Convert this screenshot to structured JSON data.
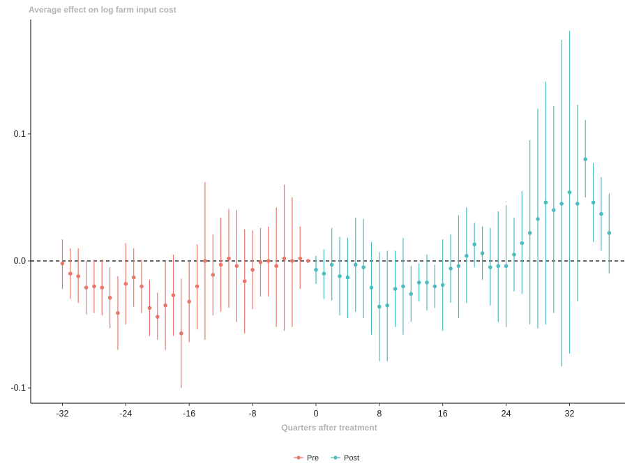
{
  "chart_data": {
    "type": "scatter",
    "title": "",
    "ylabel": "Average effect on log farm input cost",
    "xlabel": "Quarters after treatment",
    "xlim": [
      -36,
      39
    ],
    "ylim": [
      -0.112,
      0.19
    ],
    "x_ticks": [
      -32,
      -24,
      -16,
      -8,
      0,
      8,
      16,
      24,
      32
    ],
    "x_tick_labels": [
      "-32",
      "-24",
      "-16",
      "-8",
      "0",
      "8",
      "16",
      "24",
      "32"
    ],
    "y_ticks": [
      -0.1,
      0.0,
      0.1
    ],
    "y_tick_labels": [
      "-0.1",
      "0.0",
      "0.1"
    ],
    "reference_line": {
      "y": 0,
      "style": "dashed"
    },
    "legend_position": "bottom",
    "series": [
      {
        "name": "Pre",
        "color": "#e8776a",
        "points": [
          {
            "x": -32,
            "y": -0.002,
            "lo": -0.022,
            "hi": 0.017
          },
          {
            "x": -31,
            "y": -0.01,
            "lo": -0.03,
            "hi": 0.01
          },
          {
            "x": -30,
            "y": -0.012,
            "lo": -0.033,
            "hi": 0.01
          },
          {
            "x": -29,
            "y": -0.021,
            "lo": -0.042,
            "hi": 0.0
          },
          {
            "x": -28,
            "y": -0.02,
            "lo": -0.041,
            "hi": 0.001
          },
          {
            "x": -27,
            "y": -0.021,
            "lo": -0.043,
            "hi": 0.001
          },
          {
            "x": -26,
            "y": -0.029,
            "lo": -0.053,
            "hi": -0.005
          },
          {
            "x": -25,
            "y": -0.041,
            "lo": -0.07,
            "hi": -0.012
          },
          {
            "x": -24,
            "y": -0.018,
            "lo": -0.05,
            "hi": 0.014
          },
          {
            "x": -23,
            "y": -0.013,
            "lo": -0.036,
            "hi": 0.01
          },
          {
            "x": -22,
            "y": -0.02,
            "lo": -0.041,
            "hi": 0.001
          },
          {
            "x": -21,
            "y": -0.037,
            "lo": -0.059,
            "hi": -0.015
          },
          {
            "x": -20,
            "y": -0.044,
            "lo": -0.062,
            "hi": -0.025
          },
          {
            "x": -19,
            "y": -0.035,
            "lo": -0.07,
            "hi": 0.0
          },
          {
            "x": -18,
            "y": -0.027,
            "lo": -0.059,
            "hi": 0.005
          },
          {
            "x": -17,
            "y": -0.057,
            "lo": -0.1,
            "hi": -0.014
          },
          {
            "x": -16,
            "y": -0.032,
            "lo": -0.064,
            "hi": 0.0
          },
          {
            "x": -15,
            "y": -0.02,
            "lo": -0.054,
            "hi": 0.013
          },
          {
            "x": -14,
            "y": 0.0,
            "lo": -0.062,
            "hi": 0.062
          },
          {
            "x": -13,
            "y": -0.011,
            "lo": -0.043,
            "hi": 0.021
          },
          {
            "x": -12,
            "y": -0.003,
            "lo": -0.04,
            "hi": 0.034
          },
          {
            "x": -11,
            "y": 0.002,
            "lo": -0.037,
            "hi": 0.041
          },
          {
            "x": -10,
            "y": -0.004,
            "lo": -0.048,
            "hi": 0.04
          },
          {
            "x": -9,
            "y": -0.016,
            "lo": -0.057,
            "hi": 0.025
          },
          {
            "x": -8,
            "y": -0.007,
            "lo": -0.038,
            "hi": 0.024
          },
          {
            "x": -7,
            "y": -0.001,
            "lo": -0.028,
            "hi": 0.026
          },
          {
            "x": -6,
            "y": 0.0,
            "lo": -0.028,
            "hi": 0.027
          },
          {
            "x": -5,
            "y": -0.004,
            "lo": -0.052,
            "hi": 0.042
          },
          {
            "x": -4,
            "y": 0.002,
            "lo": -0.055,
            "hi": 0.06
          },
          {
            "x": -3,
            "y": 0.0,
            "lo": -0.052,
            "hi": 0.05
          },
          {
            "x": -2,
            "y": 0.002,
            "lo": -0.022,
            "hi": 0.027
          },
          {
            "x": -1,
            "y": 0.0,
            "lo": 0.0,
            "hi": 0.0
          }
        ]
      },
      {
        "name": "Post",
        "color": "#4bbcbf",
        "points": [
          {
            "x": 0,
            "y": -0.007,
            "lo": -0.018,
            "hi": 0.004
          },
          {
            "x": 1,
            "y": -0.01,
            "lo": -0.03,
            "hi": 0.009
          },
          {
            "x": 2,
            "y": -0.003,
            "lo": -0.031,
            "hi": 0.026
          },
          {
            "x": 3,
            "y": -0.012,
            "lo": -0.043,
            "hi": 0.019
          },
          {
            "x": 4,
            "y": -0.013,
            "lo": -0.045,
            "hi": 0.018
          },
          {
            "x": 5,
            "y": -0.003,
            "lo": -0.04,
            "hi": 0.034
          },
          {
            "x": 6,
            "y": -0.005,
            "lo": -0.045,
            "hi": 0.033
          },
          {
            "x": 7,
            "y": -0.021,
            "lo": -0.058,
            "hi": 0.015
          },
          {
            "x": 8,
            "y": -0.036,
            "lo": -0.079,
            "hi": 0.007
          },
          {
            "x": 9,
            "y": -0.035,
            "lo": -0.079,
            "hi": 0.008
          },
          {
            "x": 10,
            "y": -0.022,
            "lo": -0.052,
            "hi": 0.008
          },
          {
            "x": 11,
            "y": -0.02,
            "lo": -0.058,
            "hi": 0.018
          },
          {
            "x": 12,
            "y": -0.026,
            "lo": -0.048,
            "hi": -0.004
          },
          {
            "x": 13,
            "y": -0.017,
            "lo": -0.032,
            "hi": -0.002
          },
          {
            "x": 14,
            "y": -0.017,
            "lo": -0.039,
            "hi": 0.005
          },
          {
            "x": 15,
            "y": -0.02,
            "lo": -0.037,
            "hi": -0.003
          },
          {
            "x": 16,
            "y": -0.019,
            "lo": -0.055,
            "hi": 0.017
          },
          {
            "x": 17,
            "y": -0.006,
            "lo": -0.033,
            "hi": 0.021
          },
          {
            "x": 18,
            "y": -0.004,
            "lo": -0.045,
            "hi": 0.036
          },
          {
            "x": 19,
            "y": 0.004,
            "lo": -0.033,
            "hi": 0.042
          },
          {
            "x": 20,
            "y": 0.013,
            "lo": -0.005,
            "hi": 0.03
          },
          {
            "x": 21,
            "y": 0.006,
            "lo": -0.015,
            "hi": 0.027
          },
          {
            "x": 22,
            "y": -0.005,
            "lo": -0.035,
            "hi": 0.026
          },
          {
            "x": 23,
            "y": -0.004,
            "lo": -0.048,
            "hi": 0.039
          },
          {
            "x": 24,
            "y": -0.004,
            "lo": -0.052,
            "hi": 0.044
          },
          {
            "x": 25,
            "y": 0.005,
            "lo": -0.024,
            "hi": 0.034
          },
          {
            "x": 26,
            "y": 0.014,
            "lo": -0.026,
            "hi": 0.055
          },
          {
            "x": 27,
            "y": 0.022,
            "lo": -0.05,
            "hi": 0.095
          },
          {
            "x": 28,
            "y": 0.033,
            "lo": -0.053,
            "hi": 0.12
          },
          {
            "x": 29,
            "y": 0.046,
            "lo": -0.05,
            "hi": 0.141
          },
          {
            "x": 30,
            "y": 0.04,
            "lo": -0.041,
            "hi": 0.122
          },
          {
            "x": 31,
            "y": 0.045,
            "lo": -0.083,
            "hi": 0.174
          },
          {
            "x": 32,
            "y": 0.054,
            "lo": -0.073,
            "hi": 0.181
          },
          {
            "x": 33,
            "y": 0.045,
            "lo": -0.032,
            "hi": 0.123
          },
          {
            "x": 34,
            "y": 0.08,
            "lo": 0.05,
            "hi": 0.111
          },
          {
            "x": 35,
            "y": 0.046,
            "lo": 0.015,
            "hi": 0.077
          },
          {
            "x": 36,
            "y": 0.037,
            "lo": 0.008,
            "hi": 0.066
          },
          {
            "x": 37,
            "y": 0.022,
            "lo": -0.01,
            "hi": 0.053
          }
        ]
      }
    ]
  }
}
